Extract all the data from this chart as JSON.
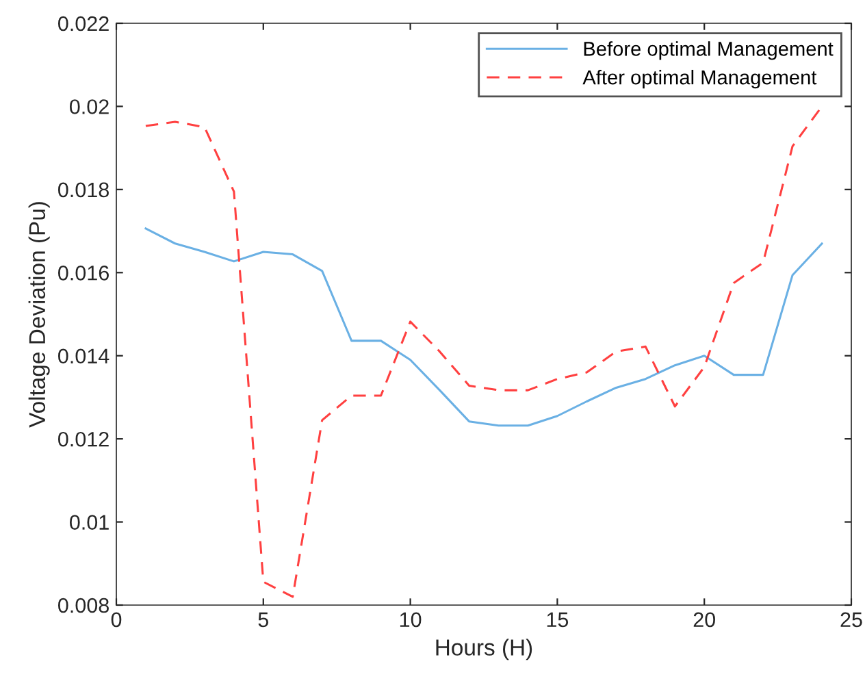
{
  "chart_data": {
    "type": "line",
    "xlabel": "Hours (H)",
    "ylabel": "Voltage Deviation (Pu)",
    "x": [
      1,
      2,
      3,
      4,
      5,
      6,
      7,
      8,
      9,
      10,
      11,
      12,
      13,
      14,
      15,
      16,
      17,
      18,
      19,
      20,
      21,
      22,
      23,
      24
    ],
    "series": [
      {
        "name": "Before optimal Management",
        "color": "#6ab0e4",
        "line_style": "solid",
        "values": [
          0.01706,
          0.0167,
          0.0165,
          0.01627,
          0.0165,
          0.01644,
          0.01604,
          0.01436,
          0.01436,
          0.0139,
          0.01317,
          0.01242,
          0.01232,
          0.01232,
          0.01255,
          0.0129,
          0.01323,
          0.01344,
          0.01377,
          0.014,
          0.01354,
          0.01354,
          0.01594,
          0.0167
        ]
      },
      {
        "name": "After optimal Management",
        "color": "#ff4040",
        "line_style": "dashed",
        "values": [
          0.01953,
          0.01963,
          0.0195,
          0.01795,
          0.00856,
          0.0082,
          0.01245,
          0.01304,
          0.01304,
          0.01482,
          0.0141,
          0.01328,
          0.01317,
          0.01317,
          0.01344,
          0.0136,
          0.0141,
          0.01422,
          0.01278,
          0.01373,
          0.01575,
          0.01624,
          0.01904,
          0.02
        ]
      }
    ],
    "xlim": [
      0,
      25
    ],
    "xticks": [
      0,
      5,
      10,
      15,
      20,
      25
    ],
    "ylim": [
      0.008,
      0.022
    ],
    "yticks": [
      0.008,
      0.01,
      0.012,
      0.014,
      0.016,
      0.018,
      0.02,
      0.022
    ],
    "grid": false,
    "legend": "top right",
    "marker": "none"
  }
}
